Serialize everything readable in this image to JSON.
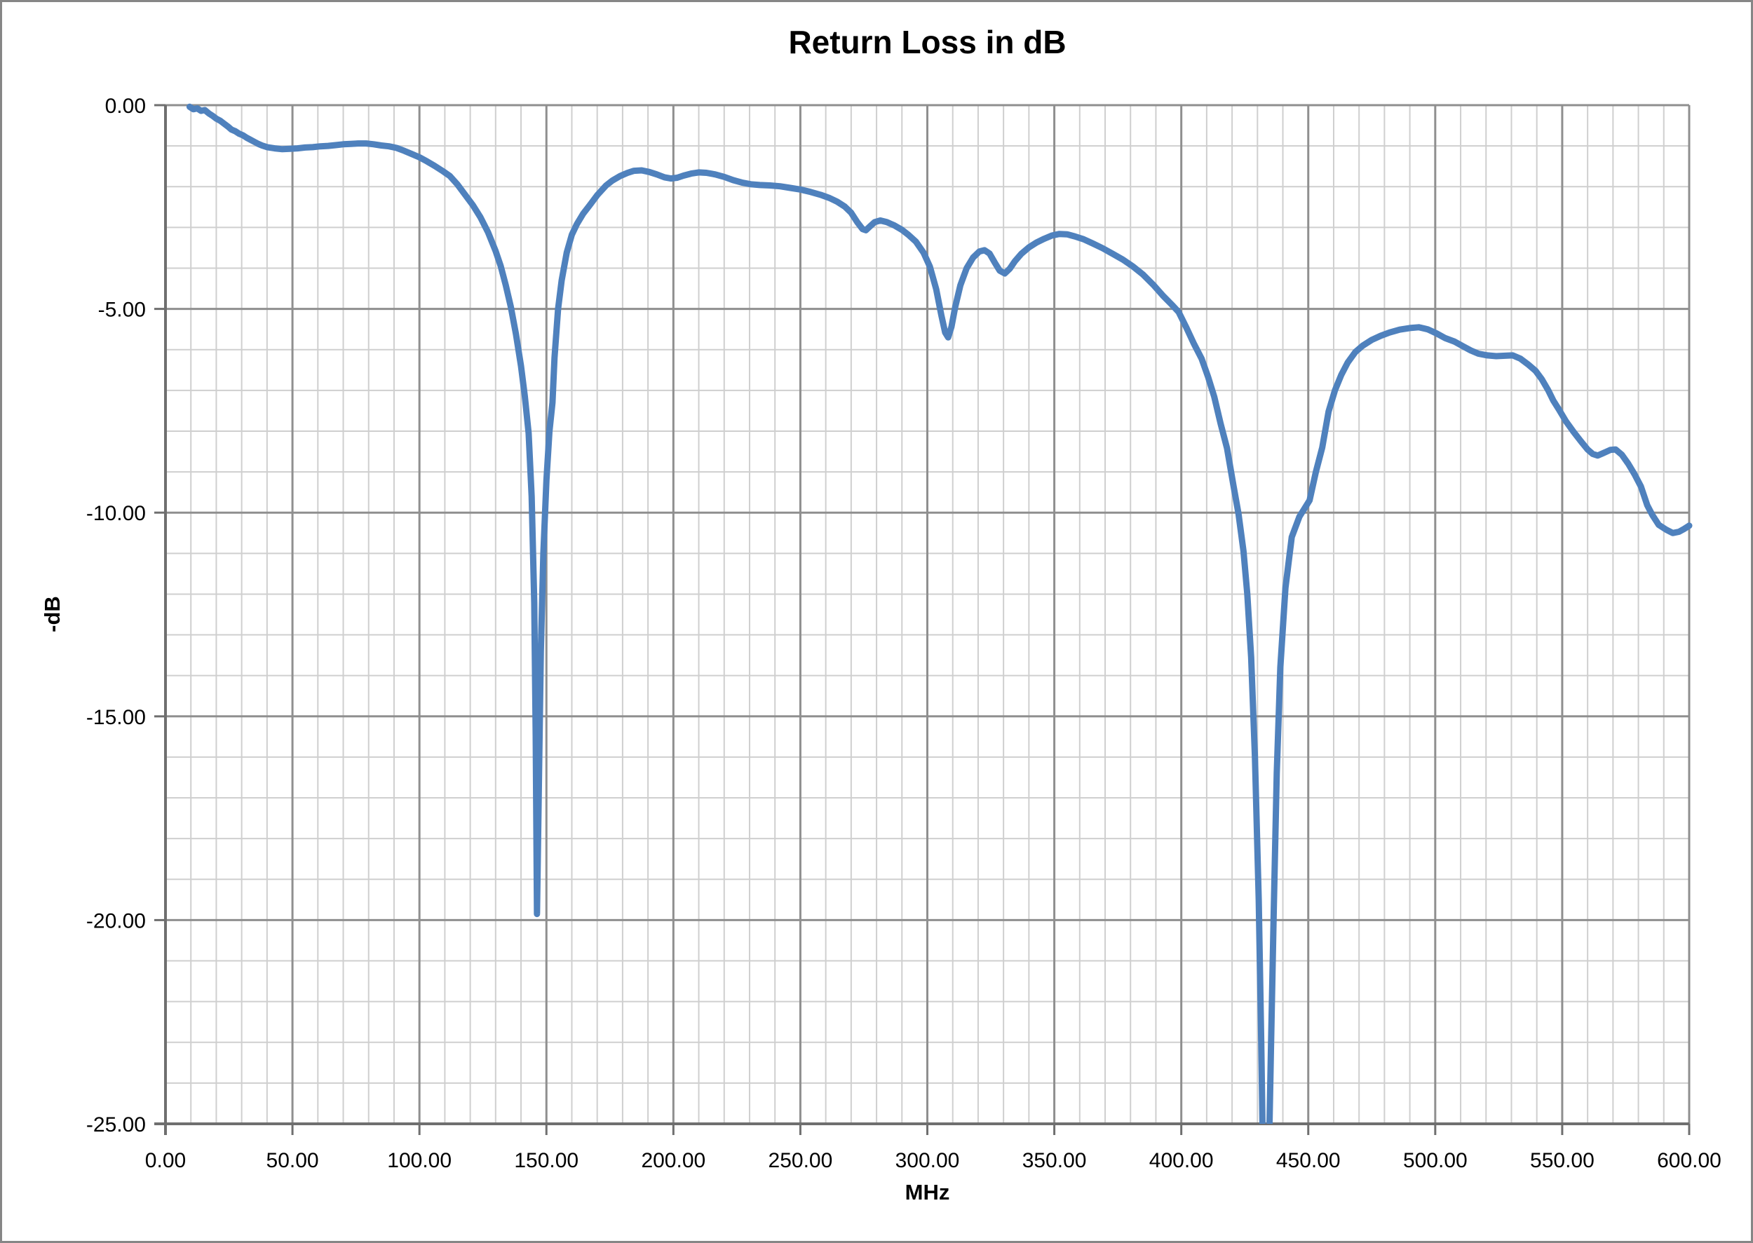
{
  "figure": {
    "title": "Return Loss in dB",
    "x_axis_label": "MHz",
    "y_axis_label": "-dB"
  },
  "chart_data": {
    "type": "line",
    "title": "Return Loss in dB",
    "xlabel": "MHz",
    "ylabel": "-dB",
    "xlim": [
      0,
      600
    ],
    "ylim": [
      -25,
      0
    ],
    "x_major_step": 50,
    "x_minor_step": 10,
    "y_major_step": 5,
    "y_minor_step": 1,
    "grid": "both-major-and-minor",
    "legend": "none",
    "x_ticks": {
      "values": [
        0,
        50,
        100,
        150,
        200,
        250,
        300,
        350,
        400,
        450,
        500,
        550,
        600
      ],
      "labels": [
        "0.00",
        "50.00",
        "100.00",
        "150.00",
        "200.00",
        "250.00",
        "300.00",
        "350.00",
        "400.00",
        "450.00",
        "500.00",
        "550.00",
        "600.00"
      ]
    },
    "y_ticks": {
      "values": [
        0,
        -5,
        -10,
        -15,
        -20,
        -25
      ],
      "labels": [
        "0.00",
        "-5.00",
        "-10.00",
        "-15.00",
        "-20.00",
        "-25.00"
      ]
    },
    "colors": {
      "line": "#4F81BD",
      "grid_minor": "#cfcfcf",
      "grid_major": "#8f8f8f",
      "axis": "#6f6f6f",
      "text": "#000000",
      "border": "#868686"
    },
    "notes": "Return loss sweep 10-600 MHz; deep resonance notches near 146 MHz (-19.9 dB) and 433 MHz (below -25 dB, clipped by axis)",
    "series": [
      {
        "name": "Return Loss",
        "points": [
          [
            9.5,
            -0.04
          ],
          [
            11,
            -0.1
          ],
          [
            12.5,
            -0.08
          ],
          [
            14,
            -0.14
          ],
          [
            15.5,
            -0.12
          ],
          [
            17,
            -0.2
          ],
          [
            18.5,
            -0.26
          ],
          [
            20,
            -0.33
          ],
          [
            21.5,
            -0.38
          ],
          [
            23,
            -0.45
          ],
          [
            24.5,
            -0.52
          ],
          [
            26,
            -0.6
          ],
          [
            27.5,
            -0.64
          ],
          [
            29,
            -0.7
          ],
          [
            30.5,
            -0.74
          ],
          [
            32,
            -0.8
          ],
          [
            33.5,
            -0.85
          ],
          [
            35,
            -0.9
          ],
          [
            36.5,
            -0.95
          ],
          [
            38,
            -0.99
          ],
          [
            40,
            -1.03
          ],
          [
            43,
            -1.06
          ],
          [
            46,
            -1.08
          ],
          [
            49,
            -1.07
          ],
          [
            52,
            -1.06
          ],
          [
            55,
            -1.04
          ],
          [
            58,
            -1.03
          ],
          [
            61,
            -1.01
          ],
          [
            64,
            -1.0
          ],
          [
            67,
            -0.98
          ],
          [
            70,
            -0.96
          ],
          [
            73,
            -0.95
          ],
          [
            76,
            -0.94
          ],
          [
            79,
            -0.94
          ],
          [
            82,
            -0.96
          ],
          [
            85,
            -0.99
          ],
          [
            88,
            -1.01
          ],
          [
            91,
            -1.05
          ],
          [
            94,
            -1.12
          ],
          [
            97,
            -1.2
          ],
          [
            100,
            -1.28
          ],
          [
            103,
            -1.38
          ],
          [
            106,
            -1.49
          ],
          [
            109,
            -1.61
          ],
          [
            112,
            -1.74
          ],
          [
            115,
            -1.95
          ],
          [
            118,
            -2.2
          ],
          [
            121,
            -2.45
          ],
          [
            124,
            -2.75
          ],
          [
            127,
            -3.12
          ],
          [
            130,
            -3.58
          ],
          [
            132,
            -3.95
          ],
          [
            134,
            -4.42
          ],
          [
            136,
            -4.95
          ],
          [
            138,
            -5.62
          ],
          [
            140,
            -6.4
          ],
          [
            141.5,
            -7.15
          ],
          [
            143,
            -8.05
          ],
          [
            144.2,
            -9.6
          ],
          [
            145.2,
            -12.2
          ],
          [
            145.8,
            -15.5
          ],
          [
            146.3,
            -19.85
          ],
          [
            147,
            -16.8
          ],
          [
            147.8,
            -13.4
          ],
          [
            148.8,
            -11.0
          ],
          [
            150,
            -9.2
          ],
          [
            151.2,
            -8.0
          ],
          [
            152.4,
            -7.3
          ],
          [
            153.2,
            -6.2
          ],
          [
            154.6,
            -5.0
          ],
          [
            156,
            -4.3
          ],
          [
            158,
            -3.62
          ],
          [
            160,
            -3.18
          ],
          [
            162,
            -2.92
          ],
          [
            164.5,
            -2.66
          ],
          [
            167,
            -2.46
          ],
          [
            170,
            -2.21
          ],
          [
            173.5,
            -1.97
          ],
          [
            176,
            -1.85
          ],
          [
            179,
            -1.74
          ],
          [
            182,
            -1.66
          ],
          [
            184.5,
            -1.61
          ],
          [
            187.5,
            -1.6
          ],
          [
            190.5,
            -1.64
          ],
          [
            193.5,
            -1.7
          ],
          [
            196.5,
            -1.77
          ],
          [
            199,
            -1.8
          ],
          [
            201.5,
            -1.78
          ],
          [
            204,
            -1.73
          ],
          [
            207,
            -1.68
          ],
          [
            210,
            -1.65
          ],
          [
            213,
            -1.66
          ],
          [
            216.5,
            -1.7
          ],
          [
            220,
            -1.76
          ],
          [
            223.5,
            -1.84
          ],
          [
            227,
            -1.9
          ],
          [
            230.5,
            -1.94
          ],
          [
            234,
            -1.96
          ],
          [
            238,
            -1.97
          ],
          [
            242,
            -1.99
          ],
          [
            246,
            -2.03
          ],
          [
            250,
            -2.07
          ],
          [
            254,
            -2.13
          ],
          [
            258,
            -2.2
          ],
          [
            261.5,
            -2.28
          ],
          [
            264.5,
            -2.37
          ],
          [
            267.5,
            -2.49
          ],
          [
            270,
            -2.64
          ],
          [
            272.5,
            -2.88
          ],
          [
            274.5,
            -3.04
          ],
          [
            275.8,
            -3.07
          ],
          [
            277.3,
            -2.98
          ],
          [
            279.3,
            -2.87
          ],
          [
            281.5,
            -2.83
          ],
          [
            284,
            -2.87
          ],
          [
            287,
            -2.95
          ],
          [
            290,
            -3.06
          ],
          [
            292.5,
            -3.18
          ],
          [
            295.5,
            -3.35
          ],
          [
            298.5,
            -3.62
          ],
          [
            301,
            -3.96
          ],
          [
            303.5,
            -4.52
          ],
          [
            305.5,
            -5.15
          ],
          [
            307,
            -5.58
          ],
          [
            308.2,
            -5.7
          ],
          [
            309.5,
            -5.44
          ],
          [
            311,
            -4.95
          ],
          [
            313,
            -4.42
          ],
          [
            315.5,
            -4.0
          ],
          [
            318,
            -3.74
          ],
          [
            320.5,
            -3.59
          ],
          [
            322.5,
            -3.56
          ],
          [
            324.5,
            -3.64
          ],
          [
            326.5,
            -3.86
          ],
          [
            328.5,
            -4.06
          ],
          [
            330.5,
            -4.13
          ],
          [
            332.5,
            -4.01
          ],
          [
            334.5,
            -3.83
          ],
          [
            337,
            -3.65
          ],
          [
            340,
            -3.49
          ],
          [
            343,
            -3.37
          ],
          [
            346,
            -3.28
          ],
          [
            349,
            -3.2
          ],
          [
            352,
            -3.16
          ],
          [
            355,
            -3.17
          ],
          [
            358,
            -3.22
          ],
          [
            361.5,
            -3.29
          ],
          [
            365,
            -3.39
          ],
          [
            369,
            -3.51
          ],
          [
            373,
            -3.65
          ],
          [
            377,
            -3.79
          ],
          [
            381,
            -3.96
          ],
          [
            385,
            -4.16
          ],
          [
            389,
            -4.41
          ],
          [
            393,
            -4.69
          ],
          [
            396.5,
            -4.91
          ],
          [
            399,
            -5.08
          ],
          [
            402,
            -5.46
          ],
          [
            405,
            -5.86
          ],
          [
            408,
            -6.22
          ],
          [
            410.5,
            -6.66
          ],
          [
            413,
            -7.16
          ],
          [
            415.5,
            -7.82
          ],
          [
            418,
            -8.42
          ],
          [
            420.5,
            -9.32
          ],
          [
            422.5,
            -10.02
          ],
          [
            424.5,
            -10.95
          ],
          [
            426,
            -12.0
          ],
          [
            427.5,
            -13.55
          ],
          [
            429,
            -16.0
          ],
          [
            430.5,
            -19.5
          ],
          [
            431.5,
            -23.0
          ],
          [
            432.4,
            -26.8
          ],
          [
            434.2,
            -26.8
          ],
          [
            435.3,
            -23.2
          ],
          [
            436.4,
            -19.8
          ],
          [
            437.6,
            -16.4
          ],
          [
            439,
            -13.8
          ],
          [
            441,
            -11.85
          ],
          [
            443.5,
            -10.6
          ],
          [
            446.5,
            -10.1
          ],
          [
            450.5,
            -9.7
          ],
          [
            453,
            -9.0
          ],
          [
            455.5,
            -8.4
          ],
          [
            458,
            -7.52
          ],
          [
            460.5,
            -7.0
          ],
          [
            463,
            -6.62
          ],
          [
            465.5,
            -6.32
          ],
          [
            468.5,
            -6.06
          ],
          [
            471.5,
            -5.9
          ],
          [
            475,
            -5.76
          ],
          [
            478.5,
            -5.66
          ],
          [
            482,
            -5.58
          ],
          [
            486,
            -5.51
          ],
          [
            490,
            -5.47
          ],
          [
            493.5,
            -5.45
          ],
          [
            497,
            -5.5
          ],
          [
            500.5,
            -5.6
          ],
          [
            504,
            -5.72
          ],
          [
            507.5,
            -5.8
          ],
          [
            511,
            -5.92
          ],
          [
            514,
            -6.02
          ],
          [
            517,
            -6.1
          ],
          [
            520.5,
            -6.14
          ],
          [
            524,
            -6.16
          ],
          [
            527.5,
            -6.15
          ],
          [
            530.5,
            -6.14
          ],
          [
            533.5,
            -6.22
          ],
          [
            536.5,
            -6.36
          ],
          [
            539.5,
            -6.52
          ],
          [
            542,
            -6.73
          ],
          [
            544.5,
            -7.0
          ],
          [
            546.5,
            -7.25
          ],
          [
            549,
            -7.5
          ],
          [
            551.5,
            -7.76
          ],
          [
            554.5,
            -8.02
          ],
          [
            557.5,
            -8.26
          ],
          [
            560,
            -8.45
          ],
          [
            562,
            -8.56
          ],
          [
            564,
            -8.6
          ],
          [
            566.5,
            -8.53
          ],
          [
            569,
            -8.46
          ],
          [
            571,
            -8.45
          ],
          [
            573.5,
            -8.58
          ],
          [
            576,
            -8.8
          ],
          [
            578.5,
            -9.06
          ],
          [
            581,
            -9.36
          ],
          [
            583.5,
            -9.82
          ],
          [
            585.5,
            -10.06
          ],
          [
            588,
            -10.3
          ],
          [
            591,
            -10.42
          ],
          [
            593.5,
            -10.5
          ],
          [
            596,
            -10.47
          ],
          [
            598,
            -10.4
          ],
          [
            600,
            -10.32
          ]
        ]
      }
    ]
  }
}
